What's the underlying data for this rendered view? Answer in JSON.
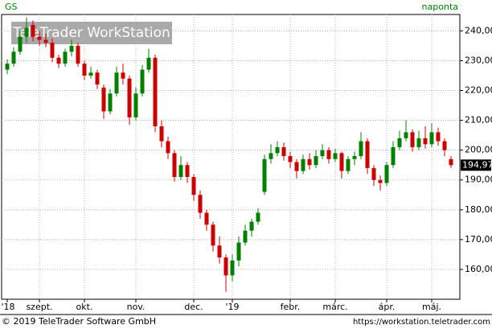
{
  "chart_data": {
    "type": "candlestick",
    "title": "GS",
    "subtitle": "naponta",
    "categories": [
      "'18",
      null,
      null,
      null,
      null,
      "szept.",
      null,
      null,
      null,
      null,
      null,
      null,
      "okt.",
      null,
      null,
      null,
      null,
      null,
      null,
      null,
      "nov.",
      null,
      null,
      null,
      null,
      null,
      null,
      null,
      null,
      "dec.",
      null,
      null,
      null,
      null,
      null,
      "'19",
      null,
      null,
      null,
      null,
      null,
      null,
      null,
      null,
      "febr.",
      null,
      null,
      null,
      null,
      null,
      null,
      "márc.",
      null,
      null,
      null,
      null,
      null,
      null,
      null,
      "ápr.",
      null,
      null,
      null,
      null,
      null,
      null,
      "máj.",
      null,
      null,
      null
    ],
    "open": [
      227,
      229,
      233,
      238,
      242,
      238,
      237,
      236,
      231,
      229,
      233,
      235,
      229,
      225,
      226,
      221,
      213,
      219,
      226,
      224,
      211,
      219,
      227,
      231,
      208,
      203,
      199,
      191,
      195,
      191,
      185,
      179,
      175,
      168,
      164,
      158,
      163,
      169,
      173,
      176,
      186,
      197,
      199,
      201,
      198,
      196,
      193,
      197,
      195,
      198,
      200,
      197,
      199,
      193,
      197,
      198,
      203,
      194,
      190,
      189,
      195,
      201,
      204,
      206,
      201,
      204,
      202,
      206,
      203,
      197
    ],
    "high": [
      230.5,
      234.5,
      240,
      244.5,
      243.5,
      240,
      239,
      237.5,
      232,
      234,
      237,
      236,
      230,
      228,
      227,
      222,
      220.5,
      228,
      229,
      225,
      221,
      228.5,
      234,
      232,
      210,
      204.5,
      200,
      198,
      196,
      192,
      186.5,
      180,
      176,
      171,
      165,
      165,
      171,
      175,
      177,
      180.5,
      198.5,
      202,
      203,
      202.5,
      199.5,
      197,
      198.5,
      199,
      200,
      202,
      201,
      200.5,
      199.5,
      198,
      199.5,
      206,
      204,
      195,
      191.5,
      196,
      203,
      206.5,
      210,
      207,
      206.5,
      208,
      209,
      207.5,
      204,
      198
    ],
    "low": [
      225.5,
      228,
      232,
      236,
      236.5,
      235,
      234.5,
      229.5,
      227.5,
      228,
      231.5,
      228,
      223.5,
      224,
      220.5,
      210.5,
      212,
      218,
      222,
      208.5,
      210,
      218,
      226,
      206,
      201,
      197,
      189.5,
      190,
      189,
      183,
      177,
      173,
      166,
      162,
      152.5,
      156,
      161,
      168,
      171,
      175,
      185,
      195.5,
      198,
      196.5,
      194,
      190.5,
      192,
      193.5,
      194,
      197,
      195.5,
      196,
      190.5,
      192,
      195,
      197,
      192,
      188,
      186.5,
      188,
      194,
      200,
      203,
      199.5,
      200,
      200.5,
      201,
      201.5,
      198,
      194
    ],
    "close": [
      229,
      233,
      238,
      241,
      238,
      237,
      236,
      231,
      229,
      233,
      235,
      229,
      225,
      226,
      222,
      213,
      219,
      226,
      224,
      211,
      219,
      227,
      231,
      208,
      203,
      199,
      191,
      195,
      191,
      185,
      179,
      175,
      168,
      164,
      158,
      163,
      169,
      173,
      176,
      179,
      197,
      199,
      201,
      198,
      196,
      193,
      197,
      195,
      198,
      200,
      197,
      199,
      193,
      197,
      198,
      203,
      194,
      190,
      189,
      195,
      201,
      204,
      206,
      201,
      204,
      202,
      206,
      203,
      200,
      194.97
    ],
    "last_price_label": "194,97",
    "up_color": "#008000",
    "down_color": "#cc0000",
    "ylim": [
      150,
      245.5
    ],
    "yticks": [
      {
        "value": 160,
        "label": "160,00"
      },
      {
        "value": 170,
        "label": "170,00"
      },
      {
        "value": 180,
        "label": "180,00"
      },
      {
        "value": 190,
        "label": "190,00"
      },
      {
        "value": 200,
        "label": "200,00"
      },
      {
        "value": 210,
        "label": "210,00"
      },
      {
        "value": 220,
        "label": "220,00"
      },
      {
        "value": 230,
        "label": "230,00"
      },
      {
        "value": 240,
        "label": "240,00"
      }
    ],
    "grid": true
  },
  "watermark": "TeleTrader WorkStation",
  "footer": {
    "left": "© 2019 TeleTrader Software GmbH",
    "right": "https://workstation.teletrader.com"
  }
}
